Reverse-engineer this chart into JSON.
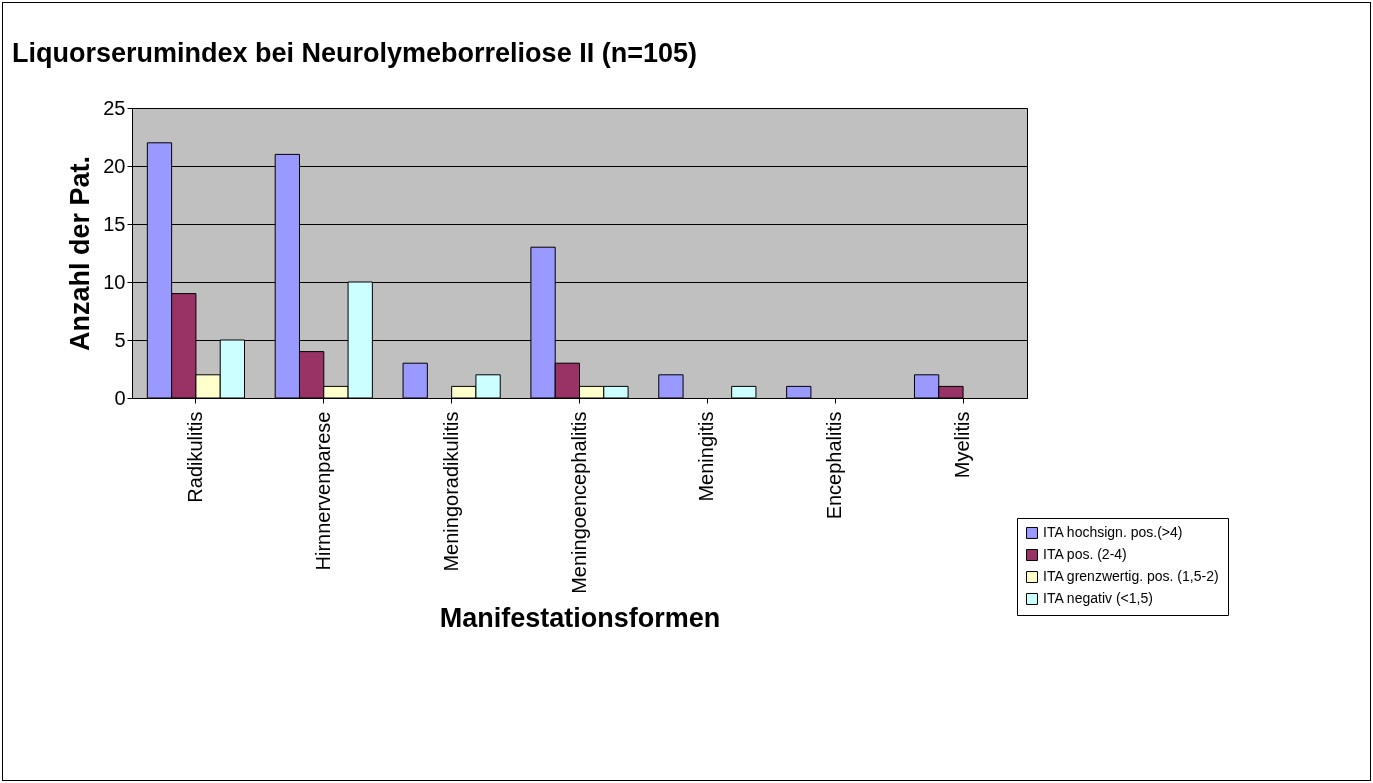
{
  "chart_data": {
    "type": "bar",
    "title": "Liquorserumindex bei Neurolymeborreliose II (n=105)",
    "xlabel": "Manifestationsformen",
    "ylabel": "Anzahl der Pat.",
    "categories": [
      "Radikulitis",
      "Hirnnervenparese",
      "Meningoradikulitis",
      "Meningoencephalitis",
      "Meningitis",
      "Encephalitis",
      "Myelitis"
    ],
    "series": [
      {
        "name": "ITA hochsign. pos.(>4)",
        "color": "#9999ff",
        "values": [
          22,
          21,
          3,
          13,
          2,
          1,
          2
        ]
      },
      {
        "name": "ITA pos. (2-4)",
        "color": "#993366",
        "values": [
          9,
          4,
          0,
          3,
          0,
          0,
          1
        ]
      },
      {
        "name": "ITA grenzwertig. pos. (1,5-2)",
        "color": "#ffffcc",
        "values": [
          2,
          1,
          1,
          1,
          0,
          0,
          0
        ]
      },
      {
        "name": "ITA negativ (<1,5)",
        "color": "#ccffff",
        "values": [
          5,
          10,
          2,
          1,
          1,
          0,
          0
        ]
      }
    ],
    "ylim": [
      0,
      25
    ],
    "yticks": [
      0,
      5,
      10,
      15,
      20,
      25
    ],
    "grid": "y",
    "legend": "bottom right"
  }
}
